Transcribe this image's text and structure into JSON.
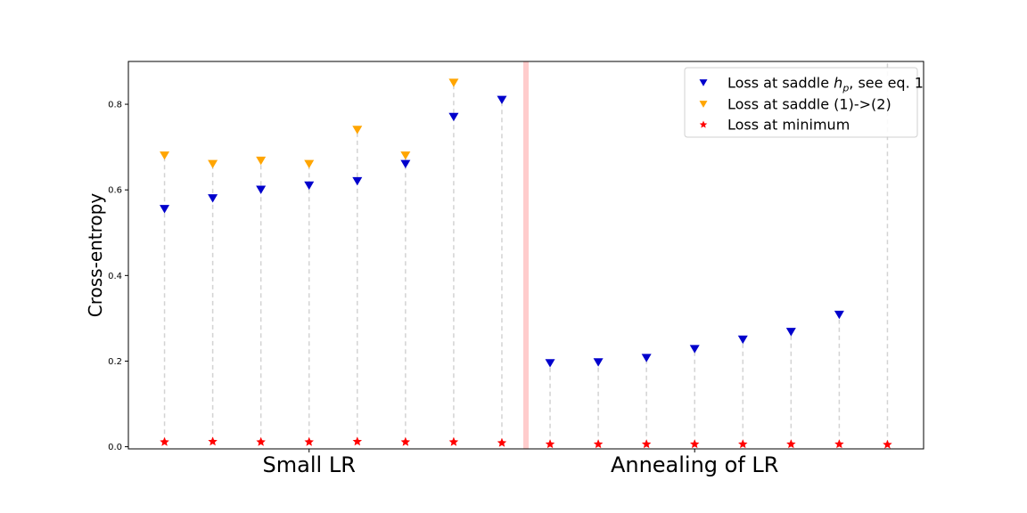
{
  "chart_data": {
    "type": "scatter",
    "title": "",
    "xlabel": "",
    "ylabel": "Cross-entropy",
    "ylim": [
      0,
      0.9
    ],
    "yticks": [
      0.0,
      0.2,
      0.4,
      0.6,
      0.8
    ],
    "ytick_labels": [
      "0.0",
      "0.2",
      "0.4",
      "0.6",
      "0.8"
    ],
    "x": [
      1,
      2,
      3,
      4,
      5,
      6,
      7,
      8,
      9,
      10,
      11,
      12,
      13,
      14,
      15,
      16
    ],
    "xlim": [
      0.25,
      16.75
    ],
    "group_labels": [
      {
        "label": "Small LR",
        "x": 4
      },
      {
        "label": "Annealing of LR",
        "x": 12
      }
    ],
    "separator": {
      "x": 8.5,
      "color": "#ffcccc"
    },
    "series": [
      {
        "name": "Loss at saddle $h_p$, see eq. 1",
        "legend_main": "Loss at saddle ",
        "legend_sub_base": "h",
        "legend_sub": "p",
        "legend_tail": ", see eq. 1",
        "marker": "triangle-down",
        "color": "#0000cc",
        "x": [
          1,
          2,
          3,
          4,
          5,
          6,
          7,
          8,
          9,
          10,
          11,
          12,
          13,
          14,
          15
        ],
        "values": [
          0.555,
          0.58,
          0.6,
          0.61,
          0.62,
          0.66,
          0.77,
          0.81,
          0.195,
          0.197,
          0.207,
          0.228,
          0.25,
          0.268,
          0.308
        ]
      },
      {
        "name": "Loss at saddle (1)->(2)",
        "marker": "triangle-down",
        "color": "#ffa500",
        "x": [
          1,
          2,
          3,
          4,
          5,
          6,
          7
        ],
        "values": [
          0.68,
          0.66,
          0.668,
          0.66,
          0.74,
          0.68,
          0.85
        ]
      },
      {
        "name": "Loss at minimum",
        "marker": "star",
        "color": "#ff0000",
        "x": [
          1,
          2,
          3,
          4,
          5,
          6,
          7,
          8,
          9,
          10,
          11,
          12,
          13,
          14,
          15,
          16
        ],
        "values": [
          0.011,
          0.012,
          0.011,
          0.011,
          0.012,
          0.011,
          0.011,
          0.009,
          0.006,
          0.006,
          0.006,
          0.006,
          0.006,
          0.006,
          0.006,
          0.005
        ]
      }
    ],
    "stems": {
      "color": "#d3d3d3",
      "style": "dashed"
    },
    "legend_position": "top-right"
  }
}
